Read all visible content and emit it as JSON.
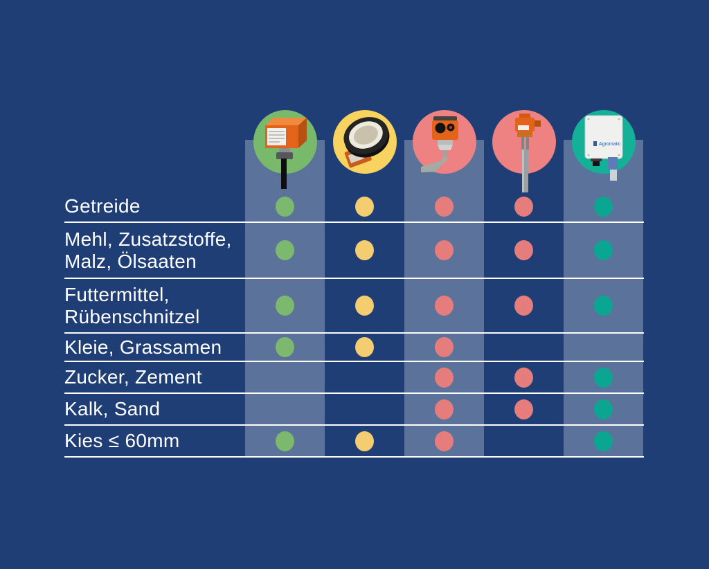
{
  "colors": {
    "background": "#1F3E76",
    "band_overlay": "rgba(255,255,255,0.27)",
    "grid_line": "#FFFFFF",
    "text": "#FFFFFF"
  },
  "columns": [
    {
      "name": "capacitive-box-sensor",
      "circle_color": "#79B96B",
      "dot_color": "#7CB96F",
      "band": "light"
    },
    {
      "name": "membrane-level-indicator",
      "circle_color": "#F8D35F",
      "dot_color": "#F4CD70",
      "band": "dark"
    },
    {
      "name": "rotary-paddle-sensor",
      "circle_color": "#EE8181",
      "dot_color": "#E57D7D",
      "band": "light"
    },
    {
      "name": "vibration-rod-sensor",
      "circle_color": "#EE8181",
      "dot_color": "#E57D7D",
      "band": "dark"
    },
    {
      "name": "agromatic-control-unit",
      "circle_color": "#14B198",
      "dot_color": "#0BA692",
      "band": "light",
      "device_label": "Agromatic"
    }
  ],
  "table": {
    "rows": [
      {
        "label_lines": [
          "Getreide"
        ],
        "cells": [
          true,
          true,
          true,
          true,
          true
        ]
      },
      {
        "label_lines": [
          "Mehl, Zusatzstoffe,",
          "Malz, Ölsaaten"
        ],
        "cells": [
          true,
          true,
          true,
          true,
          true
        ]
      },
      {
        "label_lines": [
          "Futtermittel,",
          "Rübenschnitzel"
        ],
        "cells": [
          true,
          true,
          true,
          true,
          true
        ]
      },
      {
        "label_lines": [
          "Kleie, Grassamen"
        ],
        "cells": [
          true,
          true,
          true,
          false,
          false
        ]
      },
      {
        "label_lines": [
          "Zucker, Zement"
        ],
        "cells": [
          false,
          false,
          true,
          true,
          true
        ]
      },
      {
        "label_lines": [
          "Kalk, Sand"
        ],
        "cells": [
          false,
          false,
          true,
          true,
          true
        ]
      },
      {
        "label_lines": [
          "Kies ≤ 60mm"
        ],
        "cells": [
          true,
          true,
          true,
          false,
          true
        ]
      }
    ]
  },
  "chart_data": {
    "type": "table",
    "title": "",
    "columns": [
      "capacitive box sensor",
      "membrane level indicator",
      "rotary paddle sensor",
      "vibration rod sensor",
      "Agromatic control unit"
    ],
    "rows": [
      "Getreide",
      "Mehl, Zusatzstoffe, Malz, Ölsaaten",
      "Futtermittel, Rübenschnitzel",
      "Kleie, Grassamen",
      "Zucker, Zement",
      "Kalk, Sand",
      "Kies ≤ 60mm"
    ],
    "matrix": [
      [
        1,
        1,
        1,
        1,
        1
      ],
      [
        1,
        1,
        1,
        1,
        1
      ],
      [
        1,
        1,
        1,
        1,
        1
      ],
      [
        1,
        1,
        1,
        0,
        0
      ],
      [
        0,
        0,
        1,
        1,
        1
      ],
      [
        0,
        0,
        1,
        1,
        1
      ],
      [
        1,
        1,
        1,
        0,
        1
      ]
    ],
    "legend_position": "none",
    "grid": "horizontal-white-lines"
  }
}
